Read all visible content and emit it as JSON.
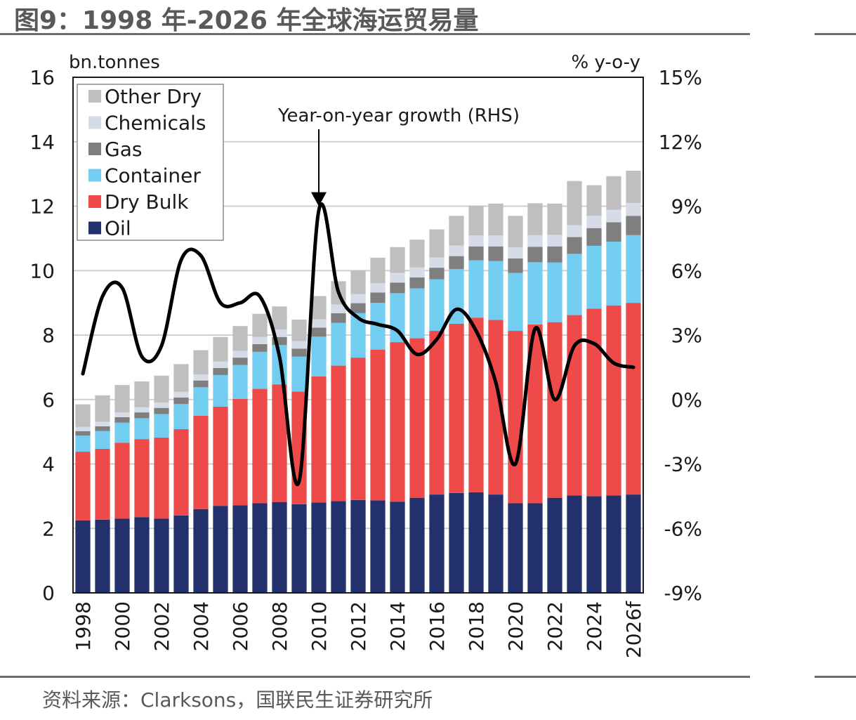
{
  "figure": {
    "title": "图9：1998 年-2026 年全球海运贸易量",
    "source": "资料来源：Clarksons，国联民生证券研究所"
  },
  "chart_data": {
    "type": "bar",
    "stacked": true,
    "secondary_type": "line",
    "categories": [
      "1998",
      "1999",
      "2000",
      "2001",
      "2002",
      "2003",
      "2004",
      "2005",
      "2006",
      "2007",
      "2008",
      "2009",
      "2010",
      "2011",
      "2012",
      "2013",
      "2014",
      "2015",
      "2016",
      "2017",
      "2018",
      "2019",
      "2020",
      "2021",
      "2022",
      "2023",
      "2024",
      "2025",
      "2026f"
    ],
    "x_tick_labels": [
      "1998",
      "2000",
      "2002",
      "2004",
      "2006",
      "2008",
      "2010",
      "2012",
      "2014",
      "2016",
      "2018",
      "2020",
      "2022",
      "2024",
      "2026f"
    ],
    "y_left_label": "bn.tonnes",
    "y_right_label": "% y-o-y",
    "y_left_ticks": [
      "0",
      "2",
      "4",
      "6",
      "8",
      "10",
      "12",
      "14",
      "16"
    ],
    "y_right_ticks": [
      "-9%",
      "-6%",
      "-3%",
      "0%",
      "3%",
      "6%",
      "9%",
      "12%",
      "15%"
    ],
    "ylim_left": [
      0,
      16
    ],
    "ylim_right": [
      -9,
      15
    ],
    "grid": "horizontal",
    "legend_position": "top-left",
    "series": [
      {
        "name": "Oil",
        "color": "#22306b",
        "values": [
          2.25,
          2.27,
          2.3,
          2.35,
          2.3,
          2.4,
          2.6,
          2.7,
          2.72,
          2.78,
          2.82,
          2.75,
          2.8,
          2.85,
          2.88,
          2.87,
          2.83,
          2.95,
          3.05,
          3.1,
          3.12,
          3.05,
          2.78,
          2.78,
          2.95,
          3.02,
          3.0,
          3.02,
          3.05
        ]
      },
      {
        "name": "Dry Bulk",
        "color": "#ee4a4a",
        "values": [
          2.13,
          2.2,
          2.36,
          2.42,
          2.52,
          2.68,
          2.9,
          3.08,
          3.3,
          3.55,
          3.65,
          3.5,
          3.92,
          4.2,
          4.42,
          4.68,
          4.95,
          4.95,
          5.08,
          5.25,
          5.42,
          5.42,
          5.35,
          5.55,
          5.45,
          5.6,
          5.82,
          5.9,
          5.95
        ]
      },
      {
        "name": "Container",
        "color": "#73cdf0",
        "values": [
          0.5,
          0.55,
          0.62,
          0.65,
          0.73,
          0.78,
          0.88,
          0.98,
          1.05,
          1.15,
          1.22,
          1.08,
          1.23,
          1.33,
          1.38,
          1.45,
          1.52,
          1.55,
          1.6,
          1.7,
          1.78,
          1.83,
          1.8,
          1.93,
          1.85,
          1.9,
          1.95,
          1.98,
          2.1
        ]
      },
      {
        "name": "Gas",
        "color": "#7f7f7f",
        "values": [
          0.14,
          0.15,
          0.17,
          0.18,
          0.19,
          0.2,
          0.21,
          0.22,
          0.23,
          0.24,
          0.25,
          0.25,
          0.28,
          0.3,
          0.31,
          0.32,
          0.33,
          0.34,
          0.36,
          0.4,
          0.43,
          0.45,
          0.45,
          0.48,
          0.5,
          0.52,
          0.55,
          0.6,
          0.6
        ]
      },
      {
        "name": "Chemicals",
        "color": "#d5dbe7",
        "values": [
          0.13,
          0.14,
          0.15,
          0.16,
          0.17,
          0.18,
          0.19,
          0.2,
          0.21,
          0.22,
          0.23,
          0.23,
          0.26,
          0.27,
          0.28,
          0.29,
          0.3,
          0.31,
          0.32,
          0.33,
          0.34,
          0.34,
          0.34,
          0.36,
          0.36,
          0.37,
          0.38,
          0.39,
          0.4
        ]
      },
      {
        "name": "Other Dry",
        "color": "#bfbfbf",
        "values": [
          0.7,
          0.82,
          0.85,
          0.8,
          0.83,
          0.86,
          0.75,
          0.76,
          0.77,
          0.72,
          0.72,
          0.67,
          0.72,
          0.72,
          0.73,
          0.79,
          0.8,
          0.86,
          0.87,
          0.92,
          0.93,
          0.99,
          0.98,
          0.99,
          0.97,
          1.37,
          0.95,
          1.04,
          1.0
        ]
      }
    ],
    "line_series": {
      "name": "Year-on-year growth (RHS)",
      "color": "#000000",
      "values": [
        1.2,
        4.8,
        5.2,
        2.0,
        2.5,
        6.5,
        6.7,
        4.5,
        4.5,
        4.8,
        2.0,
        -3.8,
        8.8,
        5.0,
        3.8,
        3.5,
        3.2,
        2.1,
        2.8,
        4.2,
        3.2,
        0.8,
        -3.0,
        3.3,
        0.0,
        2.5,
        2.6,
        1.7,
        1.5
      ]
    },
    "annotation": {
      "text": "Year-on-year growth (RHS)",
      "points_to_category": "2010"
    }
  }
}
